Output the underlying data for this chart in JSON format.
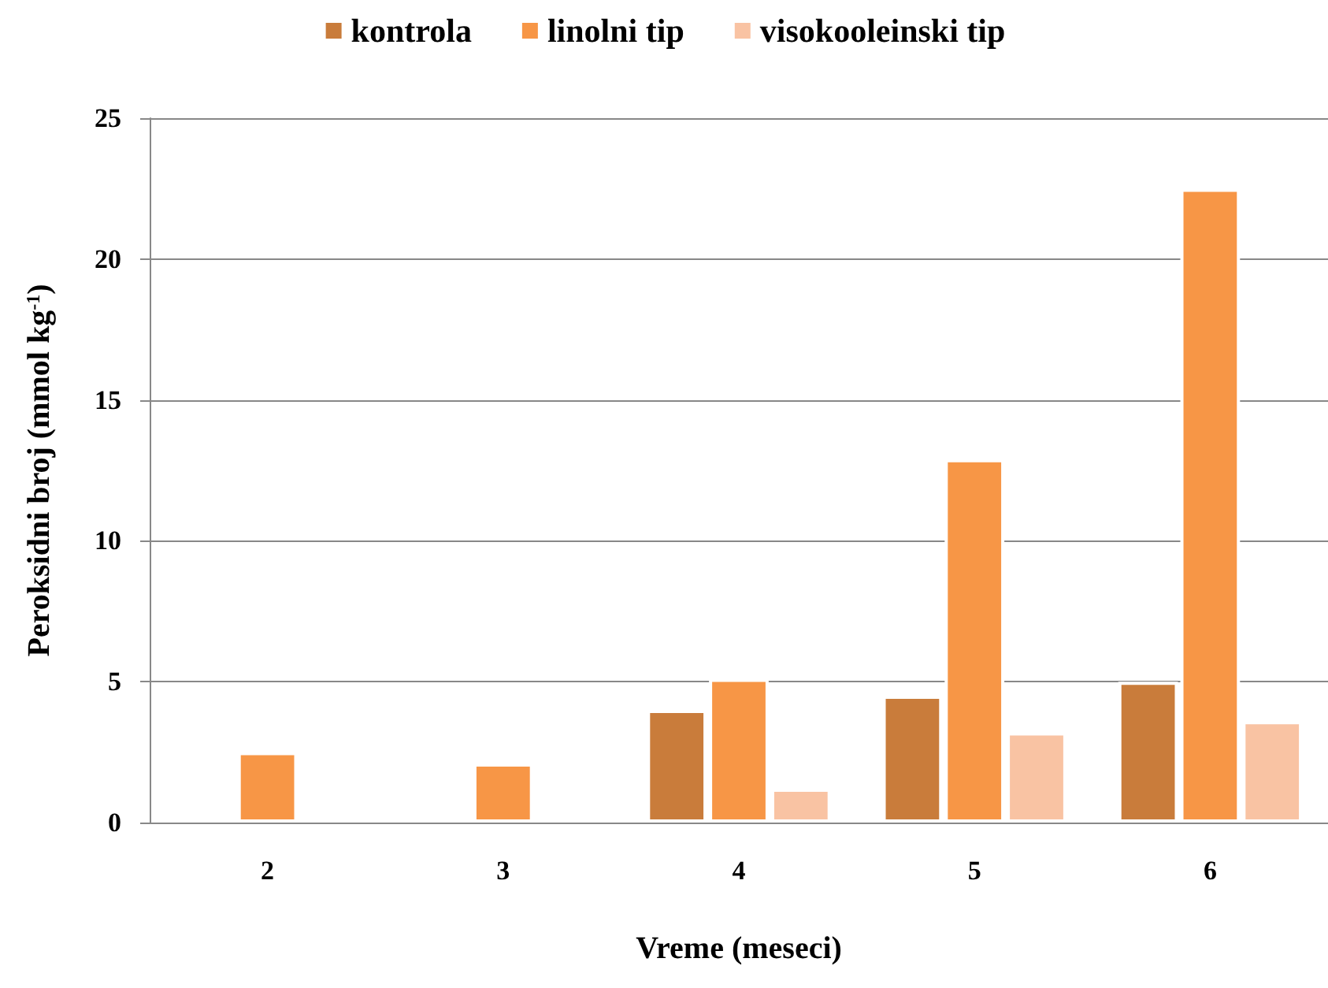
{
  "chart_data": {
    "type": "bar",
    "xlabel": "Vreme (meseci)",
    "ylabel": "Peroksidni broj (mmol kg$^{-1}$)",
    "categories": [
      "2",
      "3",
      "4",
      "5",
      "6"
    ],
    "series": [
      {
        "name": "kontrola",
        "color": "#c97c3b",
        "values": [
          null,
          null,
          4.0,
          4.5,
          5.0
        ]
      },
      {
        "name": "linolni tip",
        "color": "#f79646",
        "values": [
          2.5,
          2.1,
          5.1,
          12.9,
          22.5
        ]
      },
      {
        "name": "visokooleinski tip",
        "color": "#f9c3a3",
        "values": [
          null,
          null,
          1.2,
          3.2,
          3.6
        ]
      }
    ],
    "ylim": [
      0,
      25
    ],
    "yticks": [
      0,
      5,
      10,
      15,
      20,
      25
    ],
    "grid": "y",
    "legend": "top"
  }
}
